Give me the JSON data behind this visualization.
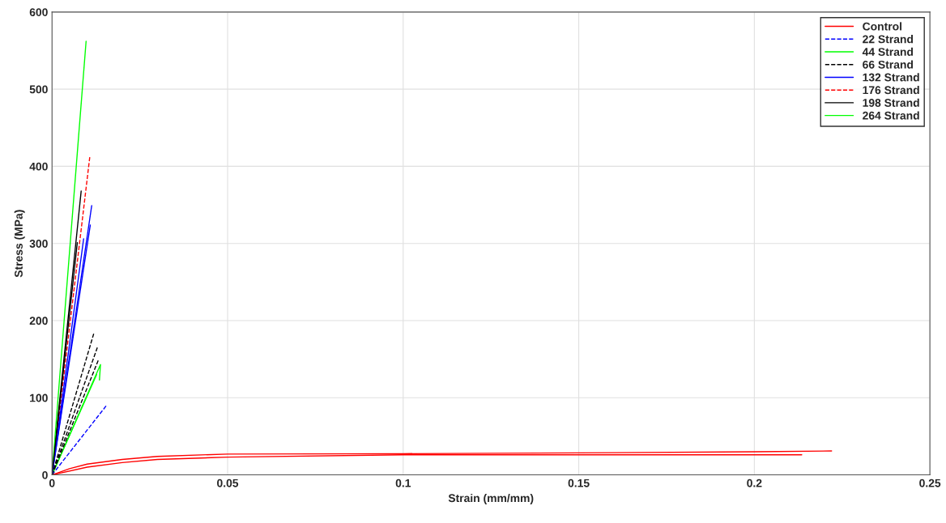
{
  "chart_data": {
    "type": "line",
    "xlabel": "Strain (mm/mm)",
    "ylabel": "Stress (MPa)",
    "xlim": [
      0,
      0.25
    ],
    "ylim": [
      0,
      600
    ],
    "xticks": [
      0,
      0.05,
      0.1,
      0.15,
      0.2,
      0.25
    ],
    "yticks": [
      0,
      100,
      200,
      300,
      400,
      500,
      600
    ],
    "grid": true,
    "legend": "top right",
    "marker": "none",
    "series": [
      {
        "name": "Control",
        "color": "#ff0000",
        "line_style": "solid",
        "x": [
          0,
          0.005,
          0.01,
          0.02,
          0.03,
          0.05,
          0.1,
          0.15,
          0.2,
          0.222
        ],
        "values": [
          0,
          8,
          14,
          20,
          24,
          27,
          27.5,
          28.5,
          30,
          31
        ]
      },
      {
        "name": "22 Strand",
        "color": "#0000ff",
        "line_style": "dashed",
        "x": [
          0,
          0.0155
        ],
        "values": [
          0,
          90
        ]
      },
      {
        "name": "44 Strand",
        "color": "#00ff00",
        "line_style": "solid",
        "x": [
          0,
          0.0138,
          0.0135
        ],
        "values": [
          0,
          143,
          123
        ]
      },
      {
        "name": "66 Strand",
        "color": "#000000",
        "line_style": "dashed",
        "x": [
          0,
          0.012
        ],
        "values": [
          0,
          185
        ]
      },
      {
        "name": "132 Strand",
        "color": "#0000ff",
        "line_style": "solid",
        "x": [
          0,
          0.0113
        ],
        "values": [
          0,
          349
        ]
      },
      {
        "name": "176 Strand",
        "color": "#ff0000",
        "line_style": "dashed",
        "x": [
          0,
          0.0108
        ],
        "values": [
          0,
          414
        ]
      },
      {
        "name": "198 Strand",
        "color": "#000000",
        "line_style": "solid",
        "x": [
          0,
          0.0083
        ],
        "values": [
          0,
          368
        ]
      },
      {
        "name": "264 Strand",
        "color": "#00ff00",
        "line_style": "solid",
        "x": [
          0,
          0.0075,
          0.0097
        ],
        "values": [
          0,
          435,
          562
        ]
      },
      {
        "color": "#ff0000",
        "line_style": "solid",
        "x": [
          0,
          0.01,
          0.02,
          0.03,
          0.05,
          0.1,
          0.15,
          0.2135
        ],
        "values": [
          0,
          10,
          16,
          20,
          23,
          26,
          26,
          26
        ]
      },
      {
        "color": "#00ff00",
        "line_style": "solid",
        "x": [
          0,
          0.0127
        ],
        "values": [
          0,
          130
        ]
      },
      {
        "color": "#000000",
        "line_style": "dashed",
        "x": [
          0,
          0.0129
        ],
        "values": [
          0,
          165
        ]
      },
      {
        "color": "#000000",
        "line_style": "dashed",
        "x": [
          0,
          0.0133
        ],
        "values": [
          0,
          150
        ]
      },
      {
        "color": "#0000ff",
        "line_style": "solid",
        "x": [
          0,
          0.0109
        ],
        "values": [
          0,
          324
        ]
      },
      {
        "color": "#0000ff",
        "line_style": "solid",
        "x": [
          0,
          0.009
        ],
        "values": [
          0,
          306
        ]
      },
      {
        "color": "#000000",
        "line_style": "solid",
        "x": [
          0,
          0.0072
        ],
        "values": [
          0,
          301
        ]
      }
    ]
  }
}
